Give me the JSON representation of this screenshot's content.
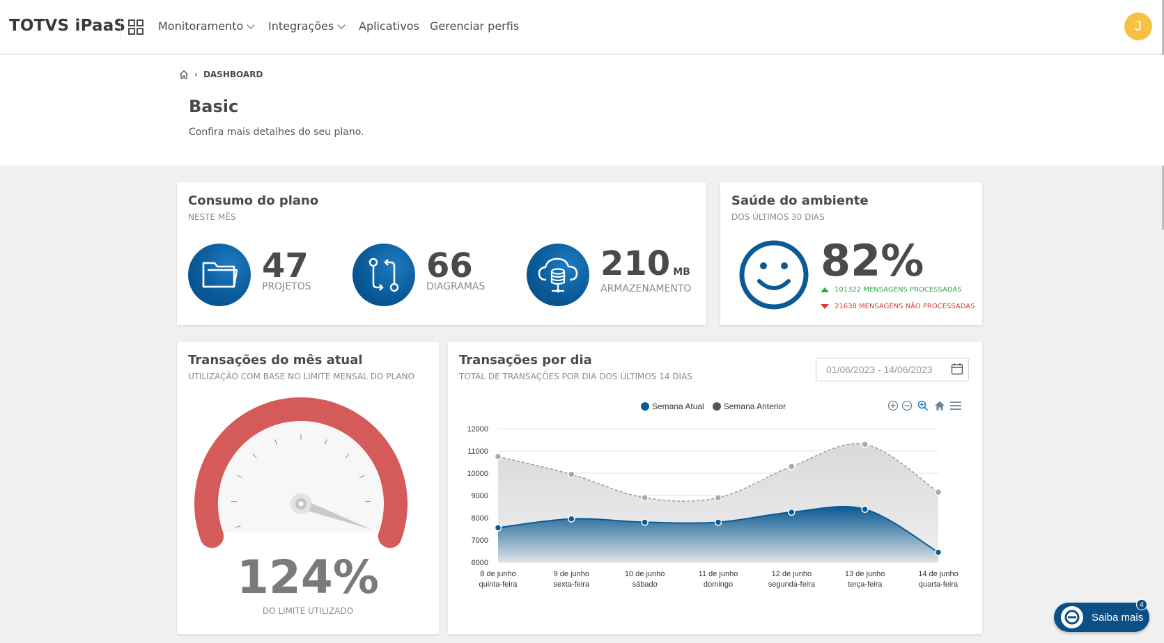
{
  "app": {
    "brand": "TOTVS iPaaS",
    "avatar_initial": "J"
  },
  "nav": {
    "items": [
      {
        "label": "Monitoramento",
        "dropdown": true
      },
      {
        "label": "Integrações",
        "dropdown": true
      },
      {
        "label": "Aplicativos",
        "dropdown": false
      },
      {
        "label": "Gerenciar perfis",
        "dropdown": false
      }
    ]
  },
  "breadcrumb": {
    "current": "DASHBOARD"
  },
  "page": {
    "title": "Basic",
    "subtitle": "Confira mais detalhes do seu plano."
  },
  "consumo": {
    "title": "Consumo do plano",
    "subtitle": "NESTE MÊS",
    "metrics": [
      {
        "value": "47",
        "unit": "",
        "label": "PROJETOS",
        "icon": "folder-icon"
      },
      {
        "value": "66",
        "unit": "",
        "label": "DIAGRAMAS",
        "icon": "diagram-flow-icon"
      },
      {
        "value": "210",
        "unit": "MB",
        "label": "ARMAZENAMENTO",
        "icon": "cloud-database-icon"
      }
    ]
  },
  "saude": {
    "title": "Saúde do ambiente",
    "subtitle": "DOS ÚLTIMOS 30 DIAS",
    "percent": "82%",
    "processed": "101322 MENSAGENS PROCESSADAS",
    "not_processed": "21638 MENSAGENS NÃO PROCESSADAS",
    "icon": "smiley-face-icon",
    "colors": {
      "ok": "#27a844",
      "error": "#d83b3b"
    }
  },
  "transacoes_mes": {
    "title": "Transações do mês atual",
    "subtitle": "UTILIZAÇÃO COM BASE NO LIMITE MENSAL DO PLANO",
    "percent": "124%",
    "label": "DO LIMITE UTILIZADO",
    "gauge_fraction": 1.24,
    "colors": {
      "arc": "#d55a5a"
    }
  },
  "transacoes_dia": {
    "title": "Transações por dia",
    "subtitle": "TOTAL DE TRANSAÇÕES POR DIA DOS ÚLTIMOS 14 DIAS",
    "date_range": "01/06/2023 - 14/06/2023"
  },
  "chart_data": {
    "type": "area",
    "categories": [
      [
        "8 de junho",
        "quinta-feira"
      ],
      [
        "9 de junho",
        "sexta-feira"
      ],
      [
        "10 de junho",
        "sábado"
      ],
      [
        "11 de junho",
        "domingo"
      ],
      [
        "12 de junho",
        "segunda-feira"
      ],
      [
        "13 de junho",
        "terça-feira"
      ],
      [
        "14 de junho",
        "quarta-feira"
      ]
    ],
    "series": [
      {
        "name": "Semana Atual",
        "color": "#0b5a93",
        "values": [
          7550,
          7950,
          7800,
          7800,
          8250,
          8380,
          6450
        ]
      },
      {
        "name": "Semana Anterior",
        "color": "#555555",
        "values": [
          10750,
          9950,
          8900,
          8900,
          10300,
          11300,
          9150
        ]
      }
    ],
    "yticks": [
      6000,
      7000,
      8000,
      9000,
      10000,
      11000,
      12000
    ],
    "ylim": [
      6000,
      12000
    ],
    "grid": true,
    "legend": "top-center"
  },
  "help": {
    "label": "Saiba mais",
    "badge": "4"
  }
}
